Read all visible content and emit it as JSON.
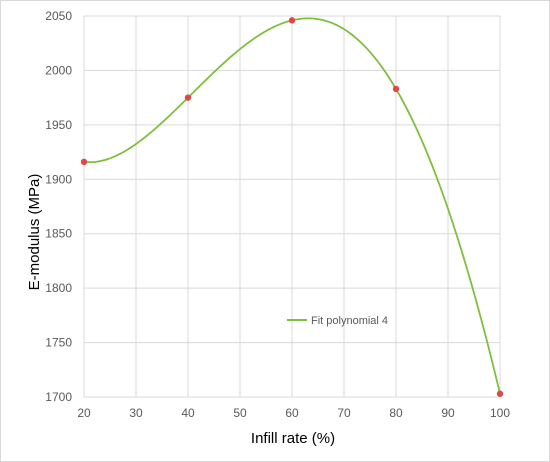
{
  "chart_data": {
    "type": "scatter",
    "title": "",
    "xlabel": "Infill rate (%)",
    "ylabel": "E-modulus (MPa)",
    "xlim": [
      20,
      100
    ],
    "ylim": [
      1700,
      2050
    ],
    "xticks": [
      20,
      30,
      40,
      50,
      60,
      70,
      80,
      90,
      100
    ],
    "yticks": [
      1700,
      1750,
      1800,
      1850,
      1900,
      1950,
      2000,
      2050
    ],
    "grid": true,
    "legend_position": "center-bottom",
    "series": [
      {
        "kind": "points",
        "x": [
          20,
          40,
          60,
          80,
          100
        ],
        "y": [
          1916,
          1975,
          2046,
          1983,
          1703
        ],
        "color": "#e04848"
      },
      {
        "name": "Fit polynomial 4",
        "kind": "curve",
        "fit": "polynomial-4",
        "color": "#7fbf3f"
      }
    ]
  }
}
